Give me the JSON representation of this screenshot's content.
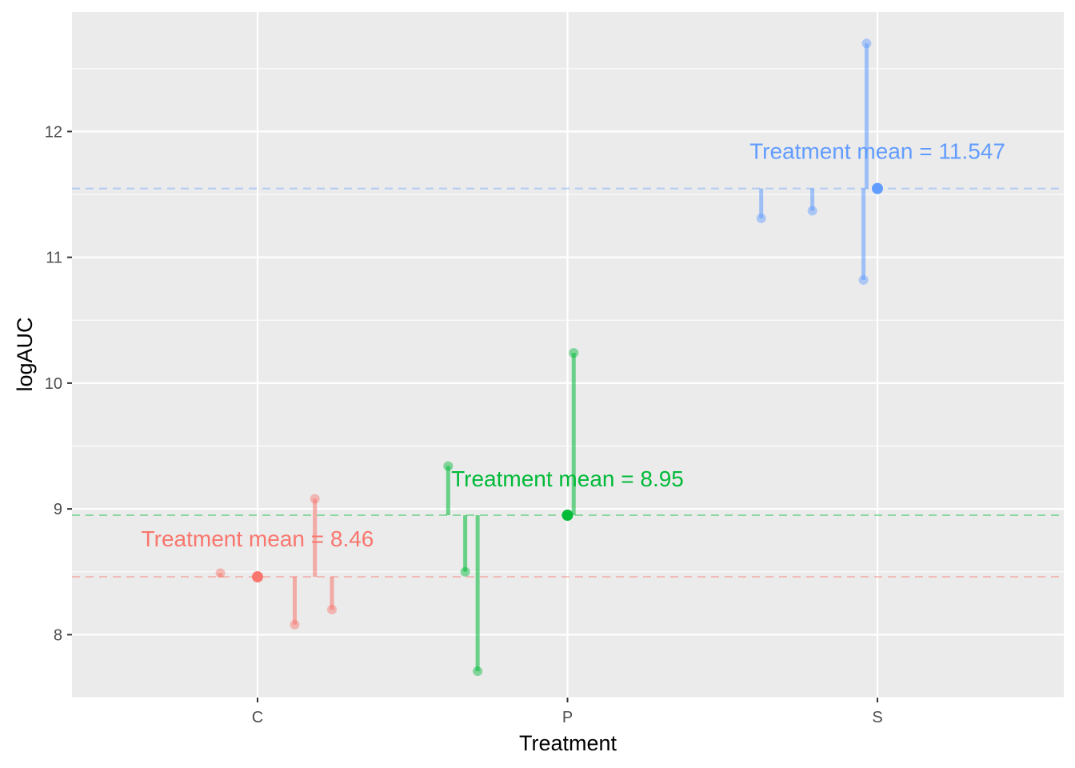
{
  "chart_data": {
    "type": "scatter",
    "xlabel": "Treatment",
    "ylabel": "logAUC",
    "categories": [
      "C",
      "P",
      "S"
    ],
    "ylim": [
      7.5,
      12.95
    ],
    "yticks": [
      8,
      9,
      10,
      11,
      12
    ],
    "grid": true,
    "legend": "none",
    "groups": [
      {
        "category": "C",
        "color": "#F8766D",
        "mean": 8.46,
        "annotation": "Treatment mean = 8.46",
        "points": [
          {
            "x": -0.12,
            "y": 8.49
          },
          {
            "x": 0.12,
            "y": 8.08
          },
          {
            "x": 0.185,
            "y": 9.08
          },
          {
            "x": 0.24,
            "y": 8.2
          }
        ]
      },
      {
        "category": "P",
        "color": "#00BA38",
        "mean": 8.95,
        "annotation": "Treatment mean = 8.95",
        "points": [
          {
            "x": -0.385,
            "y": 9.34
          },
          {
            "x": -0.33,
            "y": 8.5
          },
          {
            "x": -0.29,
            "y": 7.71
          },
          {
            "x": 0.02,
            "y": 10.24
          }
        ]
      },
      {
        "category": "S",
        "color": "#619CFF",
        "mean": 11.547,
        "annotation": "Treatment mean = 11.547",
        "points": [
          {
            "x": -0.375,
            "y": 11.31
          },
          {
            "x": -0.21,
            "y": 11.37
          },
          {
            "x": -0.045,
            "y": 10.82
          },
          {
            "x": -0.035,
            "y": 12.7
          }
        ]
      }
    ]
  }
}
